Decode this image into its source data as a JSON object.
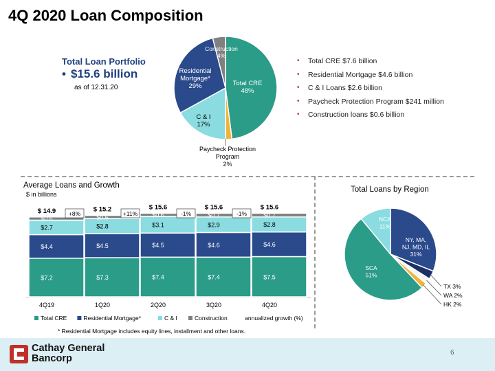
{
  "title": "4Q 2020 Loan Composition",
  "portfolio": {
    "title": "Total Loan Portfolio",
    "value": "$15.6 billion",
    "as_of": "as of 12.31.20"
  },
  "bullets": [
    "Total CRE $7.6 billion",
    "Residential Mortgage $4.6 billion",
    "C & I Loans $2.6 billion",
    "Paycheck Protection Program $241 million",
    "Construction loans $0.6 billion"
  ],
  "colors": {
    "cre": "#2A9C87",
    "residential": "#2B4A8C",
    "ci": "#8ADCE0",
    "construction": "#808080",
    "ppp": "#F2B33D",
    "tx": "#1C2F66",
    "wa": "#F5F5F5",
    "hk": "#F2B33D",
    "brand_red": "#C0302A"
  },
  "chart_data": [
    {
      "type": "pie",
      "labels": [
        "Total CRE",
        "Paycheck Protection Program",
        "C & I",
        "Residential Mortgage*",
        "Construction"
      ],
      "values": [
        48,
        2,
        17,
        29,
        4
      ],
      "display_labels": [
        [
          "Total CRE",
          "48%"
        ],
        [
          "Paycheck Protection",
          "Program",
          "2%"
        ],
        [
          "C & I",
          "17%"
        ],
        [
          "Residential",
          "Mortgage*",
          "29%"
        ],
        [
          "Construction",
          "4%"
        ]
      ]
    },
    {
      "type": "bar",
      "title": "Average Loans and Growth",
      "subtitle": "$ in billions",
      "categories": [
        "4Q19",
        "1Q20",
        "2Q20",
        "3Q20",
        "4Q20"
      ],
      "series": [
        {
          "name": "Total CRE",
          "values": [
            7.2,
            7.3,
            7.4,
            7.4,
            7.5
          ],
          "labels": [
            "$7.2",
            "$7.3",
            "$7.4",
            "$7.4",
            "$7.5"
          ]
        },
        {
          "name": "Residential Mortgage*",
          "values": [
            4.4,
            4.5,
            4.5,
            4.6,
            4.6
          ],
          "labels": [
            "$4.4",
            "$4.5",
            "$4.5",
            "$4.6",
            "$4.6"
          ]
        },
        {
          "name": "C & I",
          "values": [
            2.7,
            2.8,
            3.1,
            2.9,
            2.8
          ],
          "labels": [
            "$2.7",
            "$2.8",
            "$3.1",
            "$2.9",
            "$2.8"
          ]
        },
        {
          "name": "Construction",
          "values": [
            0.6,
            0.6,
            0.6,
            0.7,
            0.7
          ],
          "labels": [
            "$0.6",
            "$0.6",
            "$0.6",
            "$0.7",
            "$0.7"
          ]
        }
      ],
      "totals": [
        "$ 14.9",
        "$ 15.2",
        "$ 15.6",
        "$ 15.6",
        "$ 15.6"
      ],
      "growth": [
        "+8%",
        "+11%",
        "-1%",
        "-1%"
      ],
      "growth_legend": "annualized growth (%)",
      "footnote": "* Residential Mortgage includes equity lines, installment and other loans."
    },
    {
      "type": "pie",
      "title": "Total Loans by Region",
      "labels": [
        "NY, MA, NJ, MD, IL",
        "TX",
        "WA",
        "HK",
        "SCA",
        "NCA"
      ],
      "values": [
        31,
        3,
        2,
        2,
        51,
        11
      ],
      "display_labels": [
        [
          "NY, MA,",
          "NJ, MD, IL",
          "31%"
        ],
        [
          "TX 3%"
        ],
        [
          "WA 2%"
        ],
        [
          "HK 2%"
        ],
        [
          "SCA",
          "51%"
        ],
        [
          "NCA",
          "11%"
        ]
      ]
    }
  ],
  "footer": {
    "logo_line1": "Cathay General",
    "logo_line2": "Bancorp",
    "page": "6"
  }
}
